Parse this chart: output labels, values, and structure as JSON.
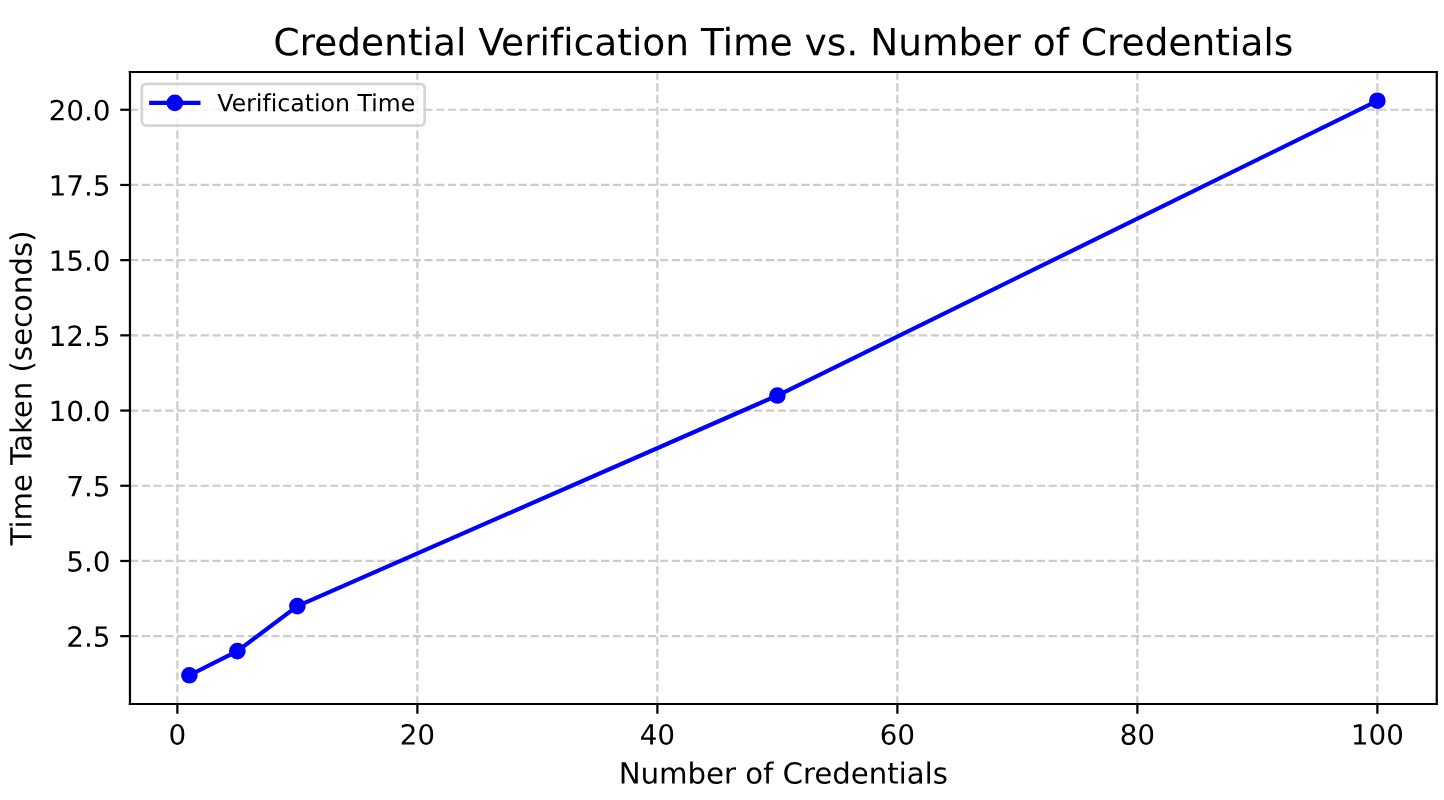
{
  "chart_data": {
    "type": "line",
    "title": "Credential Verification Time vs. Number of Credentials",
    "xlabel": "Number of Credentials",
    "ylabel": "Time Taken (seconds)",
    "x": [
      1,
      5,
      10,
      50,
      100
    ],
    "series": [
      {
        "name": "Verification Time",
        "color": "#0000ff",
        "values": [
          1.2,
          2.0,
          3.5,
          10.5,
          20.3
        ]
      }
    ],
    "xlim": [
      -3.95,
      104.95
    ],
    "ylim": [
      0.245,
      21.255
    ],
    "xticks": [
      0,
      20,
      40,
      60,
      80,
      100
    ],
    "yticks": [
      2.5,
      {
        "value": 5,
        "label": "5.0"
      },
      7.5,
      {
        "value": 10,
        "label": "10.0"
      },
      12.5,
      {
        "value": 15,
        "label": "15.0"
      },
      17.5,
      {
        "value": 20,
        "label": "20.0"
      }
    ],
    "grid": true,
    "legend": "top left",
    "marker": "circle",
    "line_style": "solid"
  }
}
